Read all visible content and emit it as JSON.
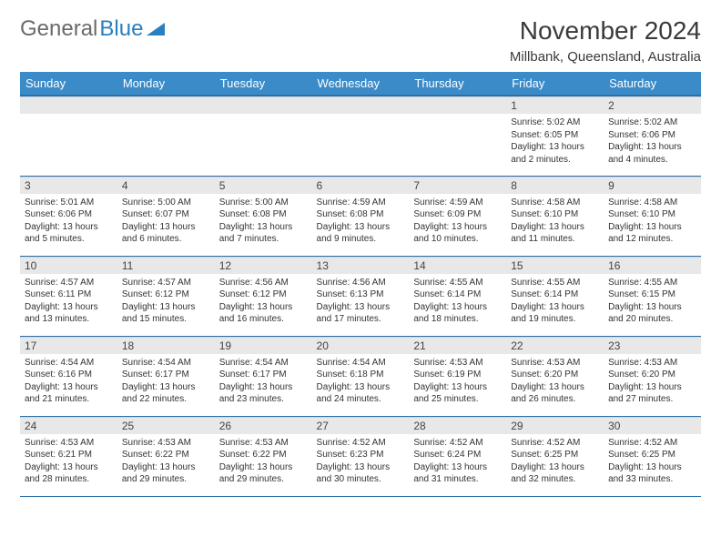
{
  "logo": {
    "text1": "General",
    "text2": "Blue"
  },
  "title": "November 2024",
  "location": "Millbank, Queensland, Australia",
  "headers": [
    "Sunday",
    "Monday",
    "Tuesday",
    "Wednesday",
    "Thursday",
    "Friday",
    "Saturday"
  ],
  "header_bg": "#3b8bc9",
  "header_border": "#2a6fa8",
  "daynum_bg": "#e8e8e8",
  "weeks": [
    [
      null,
      null,
      null,
      null,
      null,
      {
        "n": "1",
        "sunrise": "5:02 AM",
        "sunset": "6:05 PM",
        "daylight": "13 hours and 2 minutes."
      },
      {
        "n": "2",
        "sunrise": "5:02 AM",
        "sunset": "6:06 PM",
        "daylight": "13 hours and 4 minutes."
      }
    ],
    [
      {
        "n": "3",
        "sunrise": "5:01 AM",
        "sunset": "6:06 PM",
        "daylight": "13 hours and 5 minutes."
      },
      {
        "n": "4",
        "sunrise": "5:00 AM",
        "sunset": "6:07 PM",
        "daylight": "13 hours and 6 minutes."
      },
      {
        "n": "5",
        "sunrise": "5:00 AM",
        "sunset": "6:08 PM",
        "daylight": "13 hours and 7 minutes."
      },
      {
        "n": "6",
        "sunrise": "4:59 AM",
        "sunset": "6:08 PM",
        "daylight": "13 hours and 9 minutes."
      },
      {
        "n": "7",
        "sunrise": "4:59 AM",
        "sunset": "6:09 PM",
        "daylight": "13 hours and 10 minutes."
      },
      {
        "n": "8",
        "sunrise": "4:58 AM",
        "sunset": "6:10 PM",
        "daylight": "13 hours and 11 minutes."
      },
      {
        "n": "9",
        "sunrise": "4:58 AM",
        "sunset": "6:10 PM",
        "daylight": "13 hours and 12 minutes."
      }
    ],
    [
      {
        "n": "10",
        "sunrise": "4:57 AM",
        "sunset": "6:11 PM",
        "daylight": "13 hours and 13 minutes."
      },
      {
        "n": "11",
        "sunrise": "4:57 AM",
        "sunset": "6:12 PM",
        "daylight": "13 hours and 15 minutes."
      },
      {
        "n": "12",
        "sunrise": "4:56 AM",
        "sunset": "6:12 PM",
        "daylight": "13 hours and 16 minutes."
      },
      {
        "n": "13",
        "sunrise": "4:56 AM",
        "sunset": "6:13 PM",
        "daylight": "13 hours and 17 minutes."
      },
      {
        "n": "14",
        "sunrise": "4:55 AM",
        "sunset": "6:14 PM",
        "daylight": "13 hours and 18 minutes."
      },
      {
        "n": "15",
        "sunrise": "4:55 AM",
        "sunset": "6:14 PM",
        "daylight": "13 hours and 19 minutes."
      },
      {
        "n": "16",
        "sunrise": "4:55 AM",
        "sunset": "6:15 PM",
        "daylight": "13 hours and 20 minutes."
      }
    ],
    [
      {
        "n": "17",
        "sunrise": "4:54 AM",
        "sunset": "6:16 PM",
        "daylight": "13 hours and 21 minutes."
      },
      {
        "n": "18",
        "sunrise": "4:54 AM",
        "sunset": "6:17 PM",
        "daylight": "13 hours and 22 minutes."
      },
      {
        "n": "19",
        "sunrise": "4:54 AM",
        "sunset": "6:17 PM",
        "daylight": "13 hours and 23 minutes."
      },
      {
        "n": "20",
        "sunrise": "4:54 AM",
        "sunset": "6:18 PM",
        "daylight": "13 hours and 24 minutes."
      },
      {
        "n": "21",
        "sunrise": "4:53 AM",
        "sunset": "6:19 PM",
        "daylight": "13 hours and 25 minutes."
      },
      {
        "n": "22",
        "sunrise": "4:53 AM",
        "sunset": "6:20 PM",
        "daylight": "13 hours and 26 minutes."
      },
      {
        "n": "23",
        "sunrise": "4:53 AM",
        "sunset": "6:20 PM",
        "daylight": "13 hours and 27 minutes."
      }
    ],
    [
      {
        "n": "24",
        "sunrise": "4:53 AM",
        "sunset": "6:21 PM",
        "daylight": "13 hours and 28 minutes."
      },
      {
        "n": "25",
        "sunrise": "4:53 AM",
        "sunset": "6:22 PM",
        "daylight": "13 hours and 29 minutes."
      },
      {
        "n": "26",
        "sunrise": "4:53 AM",
        "sunset": "6:22 PM",
        "daylight": "13 hours and 29 minutes."
      },
      {
        "n": "27",
        "sunrise": "4:52 AM",
        "sunset": "6:23 PM",
        "daylight": "13 hours and 30 minutes."
      },
      {
        "n": "28",
        "sunrise": "4:52 AM",
        "sunset": "6:24 PM",
        "daylight": "13 hours and 31 minutes."
      },
      {
        "n": "29",
        "sunrise": "4:52 AM",
        "sunset": "6:25 PM",
        "daylight": "13 hours and 32 minutes."
      },
      {
        "n": "30",
        "sunrise": "4:52 AM",
        "sunset": "6:25 PM",
        "daylight": "13 hours and 33 minutes."
      }
    ]
  ],
  "labels": {
    "sunrise": "Sunrise:",
    "sunset": "Sunset:",
    "daylight": "Daylight:"
  }
}
